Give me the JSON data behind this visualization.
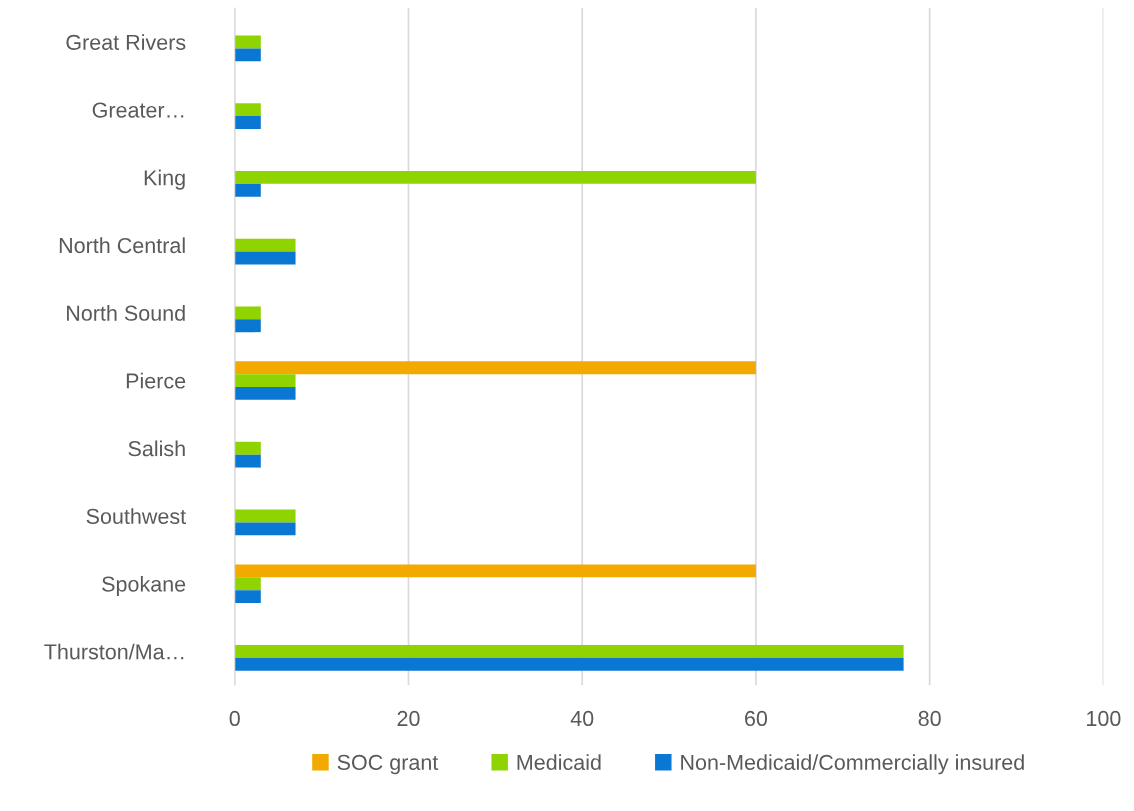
{
  "chart_data": {
    "type": "bar",
    "orientation": "horizontal",
    "categories": [
      "Great Rivers",
      "Greater…",
      "King",
      "North Central",
      "North Sound",
      "Pierce",
      "Salish",
      "Southwest",
      "Spokane",
      "Thurston/Ma…"
    ],
    "series": [
      {
        "name": "SOC grant",
        "color": "#f2a900",
        "values": [
          null,
          null,
          null,
          null,
          null,
          60,
          null,
          null,
          60,
          null
        ]
      },
      {
        "name": "Medicaid",
        "color": "#8fd400",
        "values": [
          3,
          3,
          60,
          7,
          3,
          7,
          3,
          7,
          3,
          77
        ]
      },
      {
        "name": "Non-Medicaid/Commercially insured",
        "color": "#0a78d2",
        "values": [
          3,
          3,
          3,
          7,
          3,
          7,
          3,
          7,
          3,
          77
        ]
      }
    ],
    "xlim": [
      0,
      100
    ],
    "xticks": [
      0,
      20,
      40,
      60,
      80,
      100
    ],
    "grid": "x",
    "legend": "bottom"
  }
}
